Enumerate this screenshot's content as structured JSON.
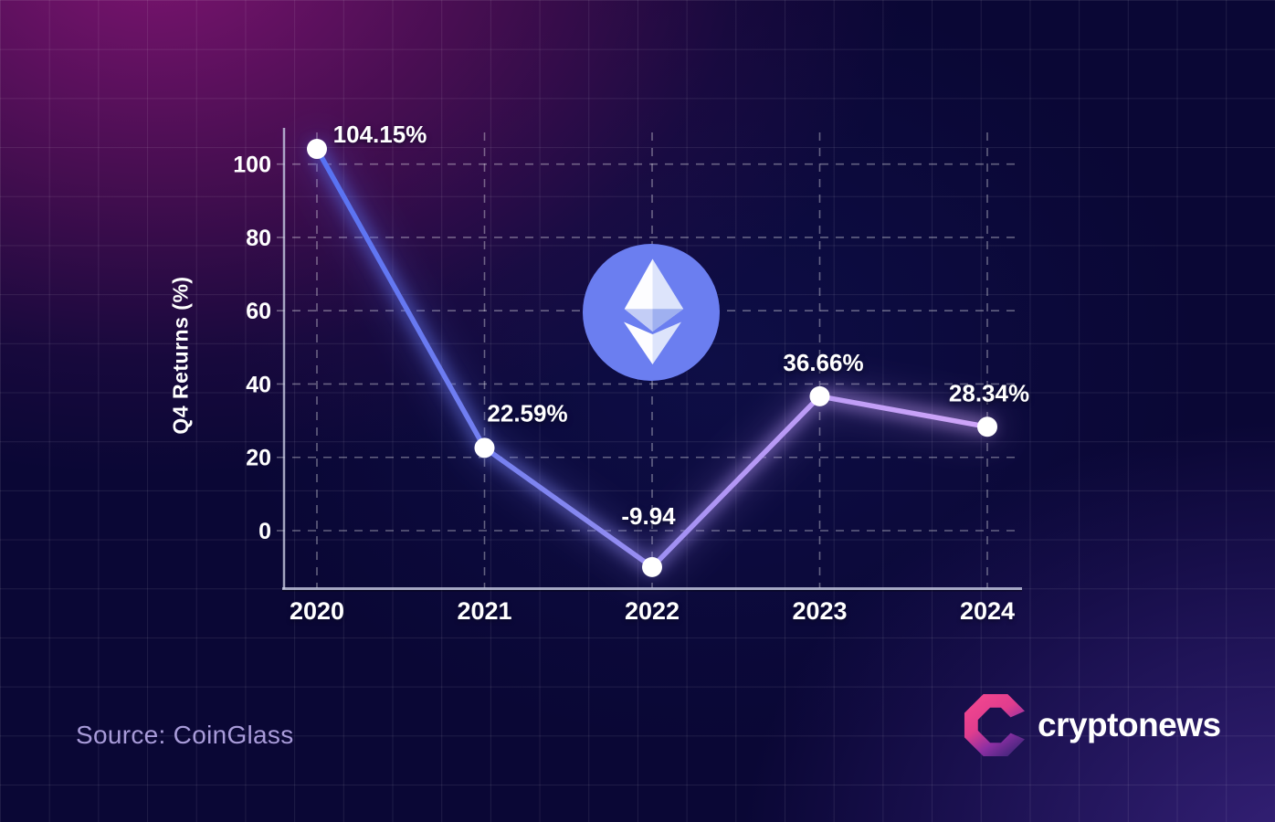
{
  "chart_data": {
    "type": "line",
    "categories": [
      "2020",
      "2021",
      "2022",
      "2023",
      "2024"
    ],
    "values": [
      104.15,
      22.59,
      -9.94,
      36.66,
      28.34
    ],
    "point_labels": [
      "104.15%",
      "22.59%",
      "-9.94",
      "36.66%",
      "28.34%"
    ],
    "ylabel": "Q4 Returns (%)",
    "xlabel": "",
    "yticks": [
      0,
      20,
      40,
      60,
      80,
      100
    ],
    "ylim": [
      -16,
      110
    ],
    "grid": "dashed",
    "legend": "none"
  },
  "footer": {
    "source_label": "Source: CoinGlass"
  },
  "branding": {
    "wordmark": "cryptonews"
  },
  "icons": {
    "center_badge": "ethereum-icon",
    "brand_mark": "cryptonews-logo"
  },
  "colors": {
    "background_base": "#0a0735",
    "magenta_glow": "#8c1678",
    "corner_purple": "#3a2478",
    "line_gradient": [
      "#5671f2",
      "#8487f0",
      "#b397f5",
      "#d0a6f9"
    ],
    "point_fill": "#ffffff",
    "grid_dash": "#ffffff",
    "axis": "#c8ccE4",
    "eth_circle": "#6b7ef0",
    "brand_pink": "#f4478f",
    "brand_purple": "#8c2fa3",
    "brand_indigo": "#43257b",
    "source_text": "#a89bd9",
    "label_text": "#ffffff"
  }
}
